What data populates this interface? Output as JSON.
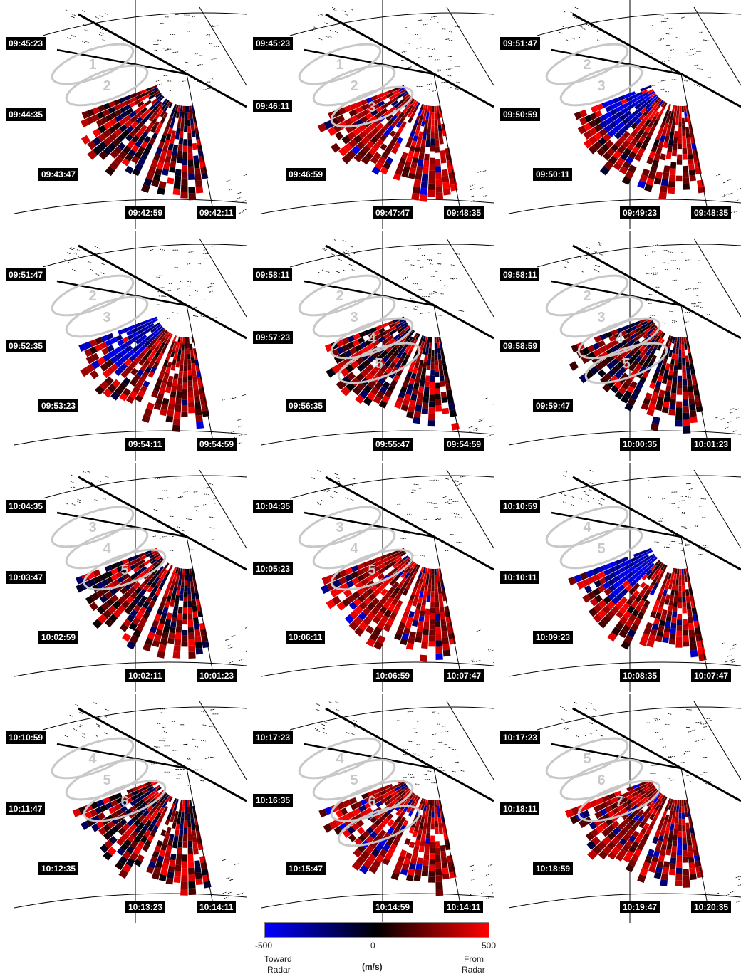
{
  "panels": [
    {
      "labels": [
        "09:45:23",
        "09:44:35",
        "09:43:47",
        "09:42:59",
        "09:42:11"
      ],
      "ellipses": [
        "1",
        "2"
      ],
      "style": "mixed"
    },
    {
      "labels": [
        "09:45:23",
        "09:46:11",
        "09:46:59",
        "09:47:47",
        "09:48:35"
      ],
      "ellipses": [
        "1",
        "2",
        "3"
      ],
      "style": "red"
    },
    {
      "labels": [
        "09:51:47",
        "09:50:59",
        "09:50:11",
        "09:49:23",
        "09:48:35"
      ],
      "ellipses": [
        "2",
        "3"
      ],
      "style": "blue-top"
    },
    {
      "labels": [
        "09:51:47",
        "09:52:35",
        "09:53:23",
        "09:54:11",
        "09:54:59"
      ],
      "ellipses": [
        "2",
        "3"
      ],
      "style": "blue-top"
    },
    {
      "labels": [
        "09:58:11",
        "09:57:23",
        "09:56:35",
        "09:55:47",
        "09:54:59"
      ],
      "ellipses": [
        "2",
        "3",
        "4",
        "5"
      ],
      "style": "mixed"
    },
    {
      "labels": [
        "09:58:11",
        "09:58:59",
        "09:59:47",
        "10:00:35",
        "10:01:23"
      ],
      "ellipses": [
        "2",
        "3",
        "4",
        "5"
      ],
      "style": "mixed"
    },
    {
      "labels": [
        "10:04:35",
        "10:03:47",
        "10:02:59",
        "10:02:11",
        "10:01:23"
      ],
      "ellipses": [
        "3",
        "4",
        "5"
      ],
      "style": "mixed"
    },
    {
      "labels": [
        "10:04:35",
        "10:05:23",
        "10:06:11",
        "10:06:59",
        "10:07:47"
      ],
      "ellipses": [
        "3",
        "4",
        "5"
      ],
      "style": "red"
    },
    {
      "labels": [
        "10:10:59",
        "10:10:11",
        "10:09:23",
        "10:08:35",
        "10:07:47"
      ],
      "ellipses": [
        "4",
        "5"
      ],
      "style": "blue-top"
    },
    {
      "labels": [
        "10:10:59",
        "10:11:47",
        "10:12:35",
        "10:13:23",
        "10:14:11"
      ],
      "ellipses": [
        "4",
        "5",
        "6"
      ],
      "style": "mixed"
    },
    {
      "labels": [
        "10:17:23",
        "10:16:35",
        "10:15:47",
        "10:14:59",
        "10:14:11"
      ],
      "ellipses": [
        "4",
        "5",
        "6",
        ""
      ],
      "style": "red"
    },
    {
      "labels": [
        "10:17:23",
        "10:18:11",
        "10:18:59",
        "10:19:47",
        "10:20:35"
      ],
      "ellipses": [
        "5",
        "6",
        "7"
      ],
      "style": "red"
    }
  ],
  "colorbar": {
    "min_label": "-500",
    "mid_label": "0",
    "max_label": "500",
    "left_title_1": "Toward",
    "left_title_2": "Radar",
    "unit": "(m/s)",
    "right_title_1": "From",
    "right_title_2": "Radar",
    "colors": [
      "#0000ff",
      "#000000",
      "#ff0000"
    ]
  }
}
